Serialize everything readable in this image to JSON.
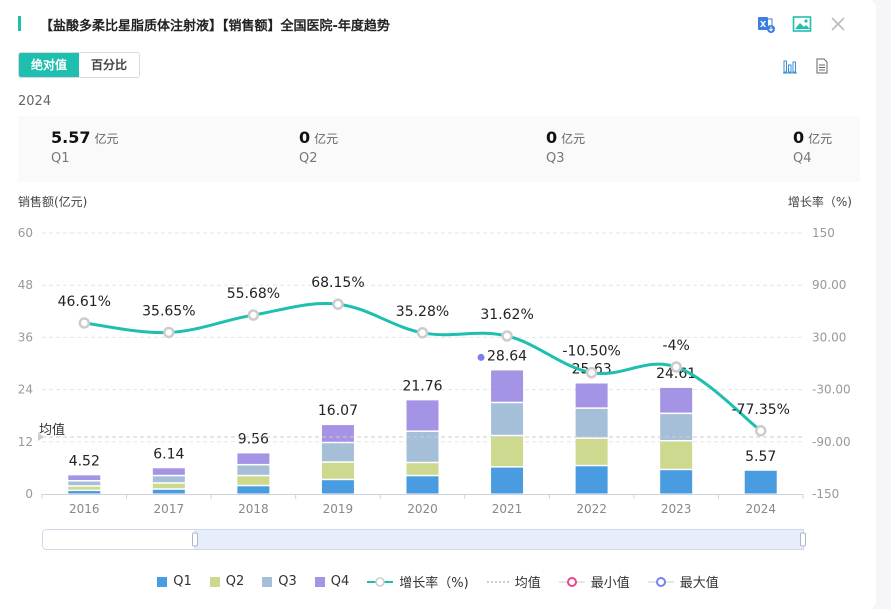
{
  "header": {
    "title": "【盐酸多柔比星脂质体注射液】【销售额】全国医院-年度趋势",
    "icons": [
      "excel-download-icon",
      "image-icon",
      "close-icon"
    ]
  },
  "toggle": {
    "options": [
      "绝对值",
      "百分比"
    ],
    "selected": "绝对值"
  },
  "view_icons": [
    "bar-chart-icon",
    "document-icon"
  ],
  "year": "2024",
  "summary": [
    {
      "value": "5.57",
      "unit": "亿元",
      "label": "Q1"
    },
    {
      "value": "0",
      "unit": "亿元",
      "label": "Q2"
    },
    {
      "value": "0",
      "unit": "亿元",
      "label": "Q3"
    },
    {
      "value": "0",
      "unit": "亿元",
      "label": "Q4"
    }
  ],
  "colors": {
    "accent": "#1fbfb0",
    "q1": "#4a9ce0",
    "q2": "#ccd98f",
    "q3": "#a6bfd8",
    "q4": "#a594e6",
    "growth_line": "#1fbfb0",
    "min_marker": "#e8488a",
    "max_marker": "#7a7ef0"
  },
  "chart_data": {
    "type": "bar",
    "stacked": true,
    "title": "【盐酸多柔比星脂质体注射液】【销售额】全国医院-年度趋势",
    "ylabel": "销售额(亿元)",
    "y2label": "增长率（%)",
    "categories": [
      "2016",
      "2017",
      "2018",
      "2019",
      "2020",
      "2021",
      "2022",
      "2023",
      "2024"
    ],
    "ylim": [
      0,
      60
    ],
    "yticks": [
      "0",
      "12",
      "24",
      "36",
      "48",
      "60"
    ],
    "y2lim": [
      -150,
      150
    ],
    "y2ticks": [
      "-150",
      "-90.00",
      "-30.00",
      "30.00",
      "90.00",
      "150"
    ],
    "series": [
      {
        "name": "Q1",
        "values": [
          0.9,
          1.2,
          2.0,
          3.4,
          4.3,
          6.3,
          6.6,
          5.7,
          5.57
        ]
      },
      {
        "name": "Q2",
        "values": [
          1.0,
          1.4,
          2.3,
          4.0,
          3.0,
          7.2,
          6.3,
          6.6,
          0
        ]
      },
      {
        "name": "Q3",
        "values": [
          1.2,
          1.7,
          2.5,
          4.5,
          7.2,
          7.6,
          6.9,
          6.3,
          0
        ]
      },
      {
        "name": "Q4",
        "values": [
          1.42,
          1.84,
          2.76,
          4.17,
          7.26,
          7.54,
          5.83,
          6.01,
          0
        ]
      }
    ],
    "totals": [
      4.52,
      6.14,
      9.56,
      16.07,
      21.76,
      28.64,
      25.63,
      24.61,
      5.57
    ],
    "total_labels": [
      "4.52",
      "6.14",
      "9.56",
      "16.07",
      "21.76",
      "28.64",
      "25.63",
      "24.61",
      "5.57"
    ],
    "growth_rate": {
      "name": "增长率（%)",
      "values": [
        46.61,
        35.65,
        55.68,
        68.15,
        35.28,
        31.62,
        -10.5,
        -4,
        -77.35
      ],
      "labels": [
        "46.61%",
        "35.65%",
        "55.68%",
        "68.15%",
        "35.28%",
        "31.62%",
        "-10.50%",
        "-4%",
        "-77.35%"
      ]
    },
    "average": {
      "name": "均值",
      "value": 13.1
    },
    "max_point": {
      "category": "2021",
      "value": 28.64
    },
    "legend": [
      "Q1",
      "Q2",
      "Q3",
      "Q4",
      "增长率（%)",
      "均值",
      "最小值",
      "最大值"
    ],
    "legend_position": "bottom",
    "grid": true
  }
}
